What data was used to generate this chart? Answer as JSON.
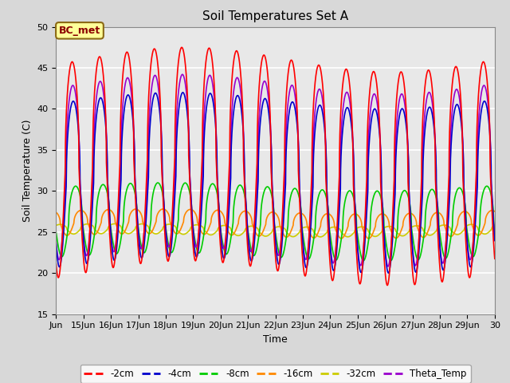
{
  "title": "Soil Temperatures Set A",
  "xlabel": "Time",
  "ylabel": "Soil Temperature (C)",
  "ylim": [
    15,
    50
  ],
  "xlim_days": [
    14,
    30
  ],
  "x_tick_days": [
    14,
    15,
    16,
    17,
    18,
    19,
    20,
    21,
    22,
    23,
    24,
    25,
    26,
    27,
    28,
    29,
    30
  ],
  "x_tick_labels": [
    "Jun",
    "15Jun",
    "16Jun",
    "17Jun",
    "18Jun",
    "19Jun",
    "20Jun",
    "21Jun",
    "22Jun",
    "23Jun",
    "24Jun",
    "25Jun",
    "26Jun",
    "27Jun",
    "28Jun",
    "29Jun",
    "30"
  ],
  "fig_bg_color": "#d8d8d8",
  "plot_bg_color": "#e8e8e8",
  "grid_color": "#ffffff",
  "series_colors": {
    "-2cm": "#ff0000",
    "-4cm": "#0000cc",
    "-8cm": "#00cc00",
    "-16cm": "#ff8800",
    "-32cm": "#cccc00",
    "Theta_Temp": "#9900cc"
  },
  "annotation_text": "BC_met",
  "annotation_color": "#8b0000",
  "annotation_bg": "#ffff99",
  "annotation_edge": "#8b6914"
}
